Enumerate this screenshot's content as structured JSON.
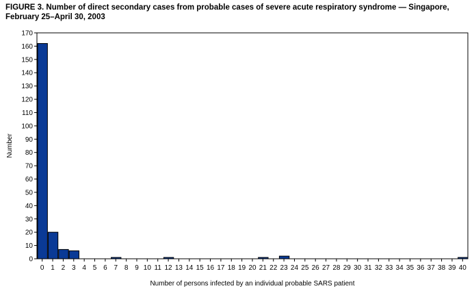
{
  "chart_data": {
    "type": "bar",
    "title": "FIGURE 3. Number of direct secondary cases from probable cases of severe acute respiratory syndrome — Singapore, February 25–April 30, 2003",
    "xlabel": "Number of persons infected by an individual probable SARS patient",
    "ylabel": "Number",
    "ylim": [
      0,
      170
    ],
    "yticks": [
      0,
      10,
      20,
      30,
      40,
      50,
      60,
      70,
      80,
      90,
      100,
      110,
      120,
      130,
      140,
      150,
      160,
      170
    ],
    "categories": [
      "0",
      "1",
      "2",
      "3",
      "4",
      "5",
      "6",
      "7",
      "8",
      "9",
      "10",
      "11",
      "12",
      "13",
      "14",
      "15",
      "16",
      "17",
      "18",
      "19",
      "20",
      "21",
      "22",
      "23",
      "24",
      "25",
      "26",
      "27",
      "28",
      "29",
      "30",
      "31",
      "32",
      "33",
      "34",
      "35",
      "36",
      "37",
      "38",
      "39",
      "40"
    ],
    "values": [
      162,
      20,
      7,
      6,
      0,
      0,
      0,
      1,
      0,
      0,
      0,
      0,
      1,
      0,
      0,
      0,
      0,
      0,
      0,
      0,
      0,
      1,
      0,
      2,
      0,
      0,
      0,
      0,
      0,
      0,
      0,
      0,
      0,
      0,
      0,
      0,
      0,
      0,
      0,
      0,
      1
    ],
    "bar_color": "#0a3a96",
    "grid": false
  }
}
